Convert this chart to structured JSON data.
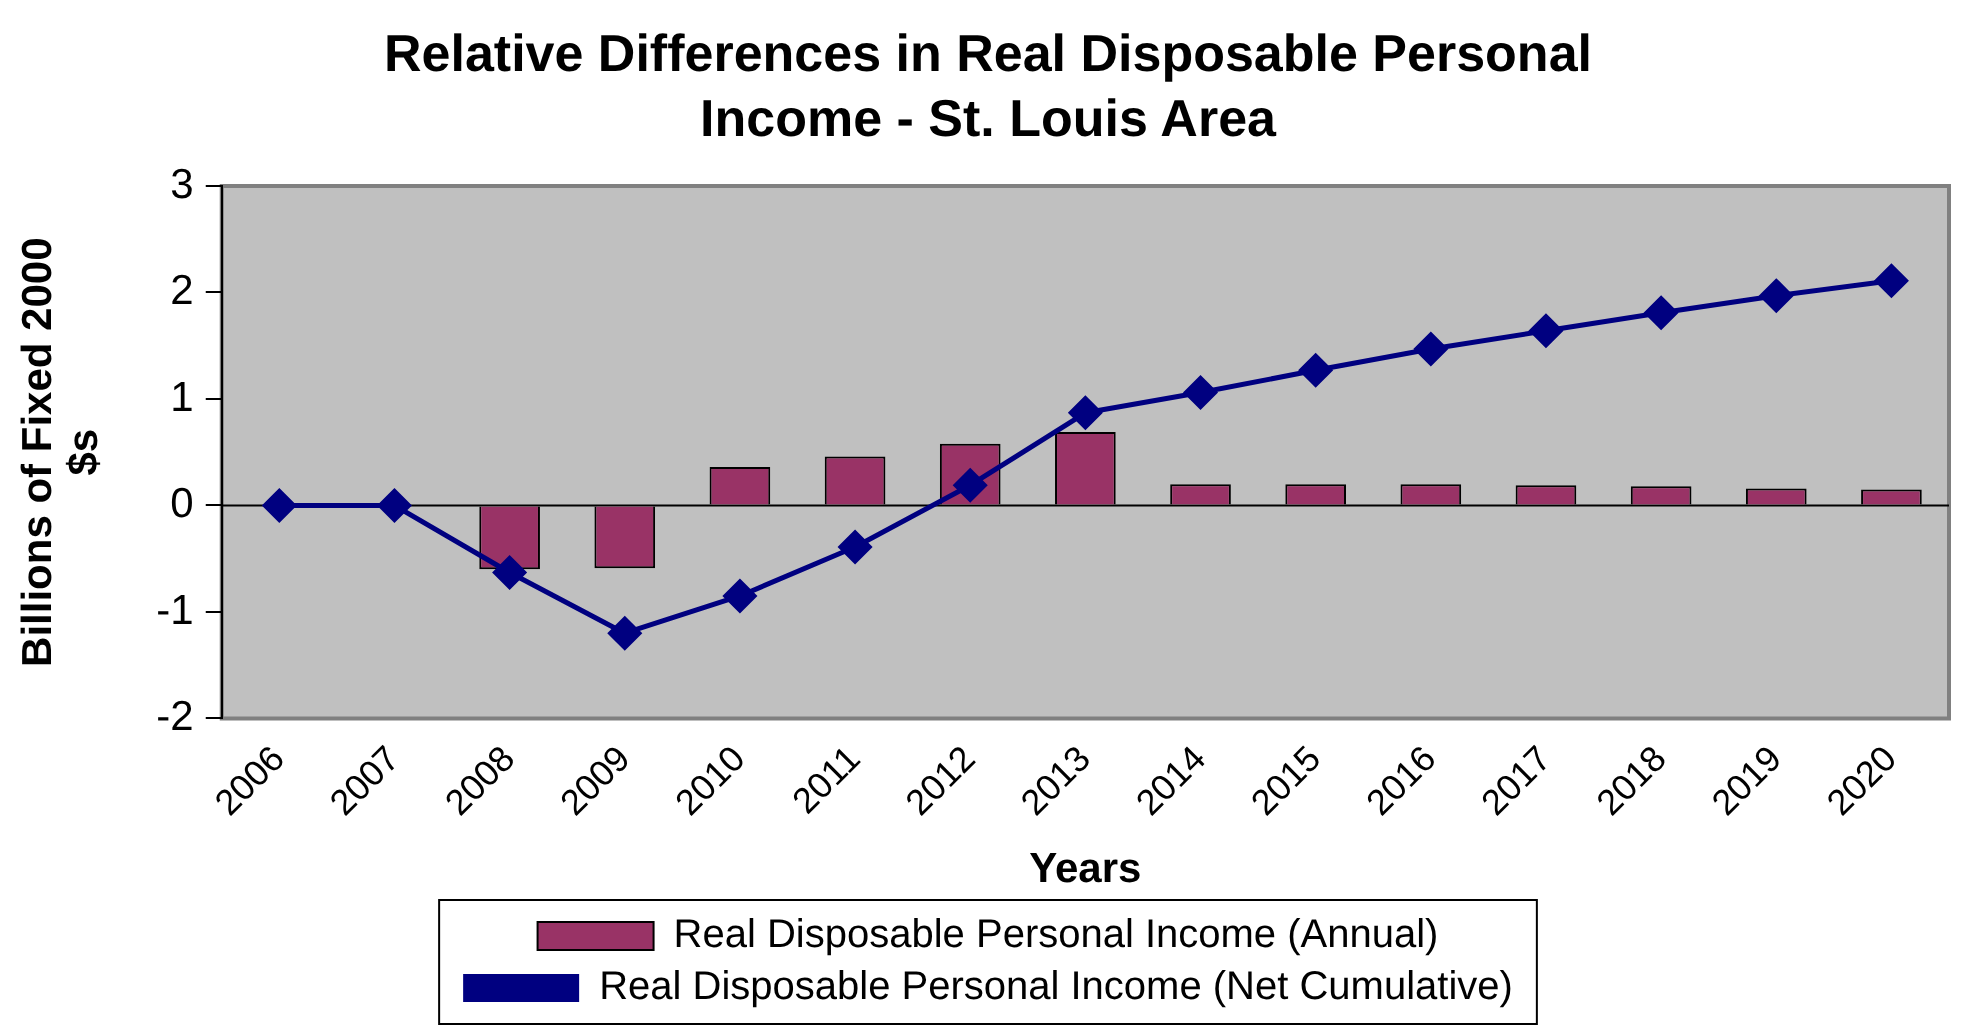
{
  "chart_data": {
    "type": "bar",
    "title": "Relative Differences in Real Disposable Personal Income - St. Louis Area",
    "xlabel": "Years",
    "ylabel": "Billions of Fixed 2000 $s",
    "categories": [
      "2006",
      "2007",
      "2008",
      "2009",
      "2010",
      "2011",
      "2012",
      "2013",
      "2014",
      "2015",
      "2016",
      "2017",
      "2018",
      "2019",
      "2020"
    ],
    "series": [
      {
        "name": "Real Disposable Personal Income (Annual)",
        "color": "#993366",
        "values": [
          0,
          0,
          -0.6,
          -0.59,
          0.36,
          0.46,
          0.58,
          0.69,
          0.2,
          0.2,
          0.2,
          0.19,
          0.18,
          0.16,
          0.15
        ]
      },
      {
        "name": "Real Disposable Personal Income (Net Cumulative)",
        "type": "line",
        "color": "#000080",
        "values": [
          0,
          0,
          -0.63,
          -1.2,
          -0.85,
          -0.39,
          0.19,
          0.87,
          1.06,
          1.27,
          1.47,
          1.64,
          1.81,
          1.97,
          2.11
        ]
      }
    ],
    "ylim": [
      -2,
      3
    ],
    "yticks": [
      -2,
      -1,
      0,
      1,
      2,
      3
    ],
    "legend": "bottom",
    "marker": "diamond",
    "line_style": "solid"
  }
}
